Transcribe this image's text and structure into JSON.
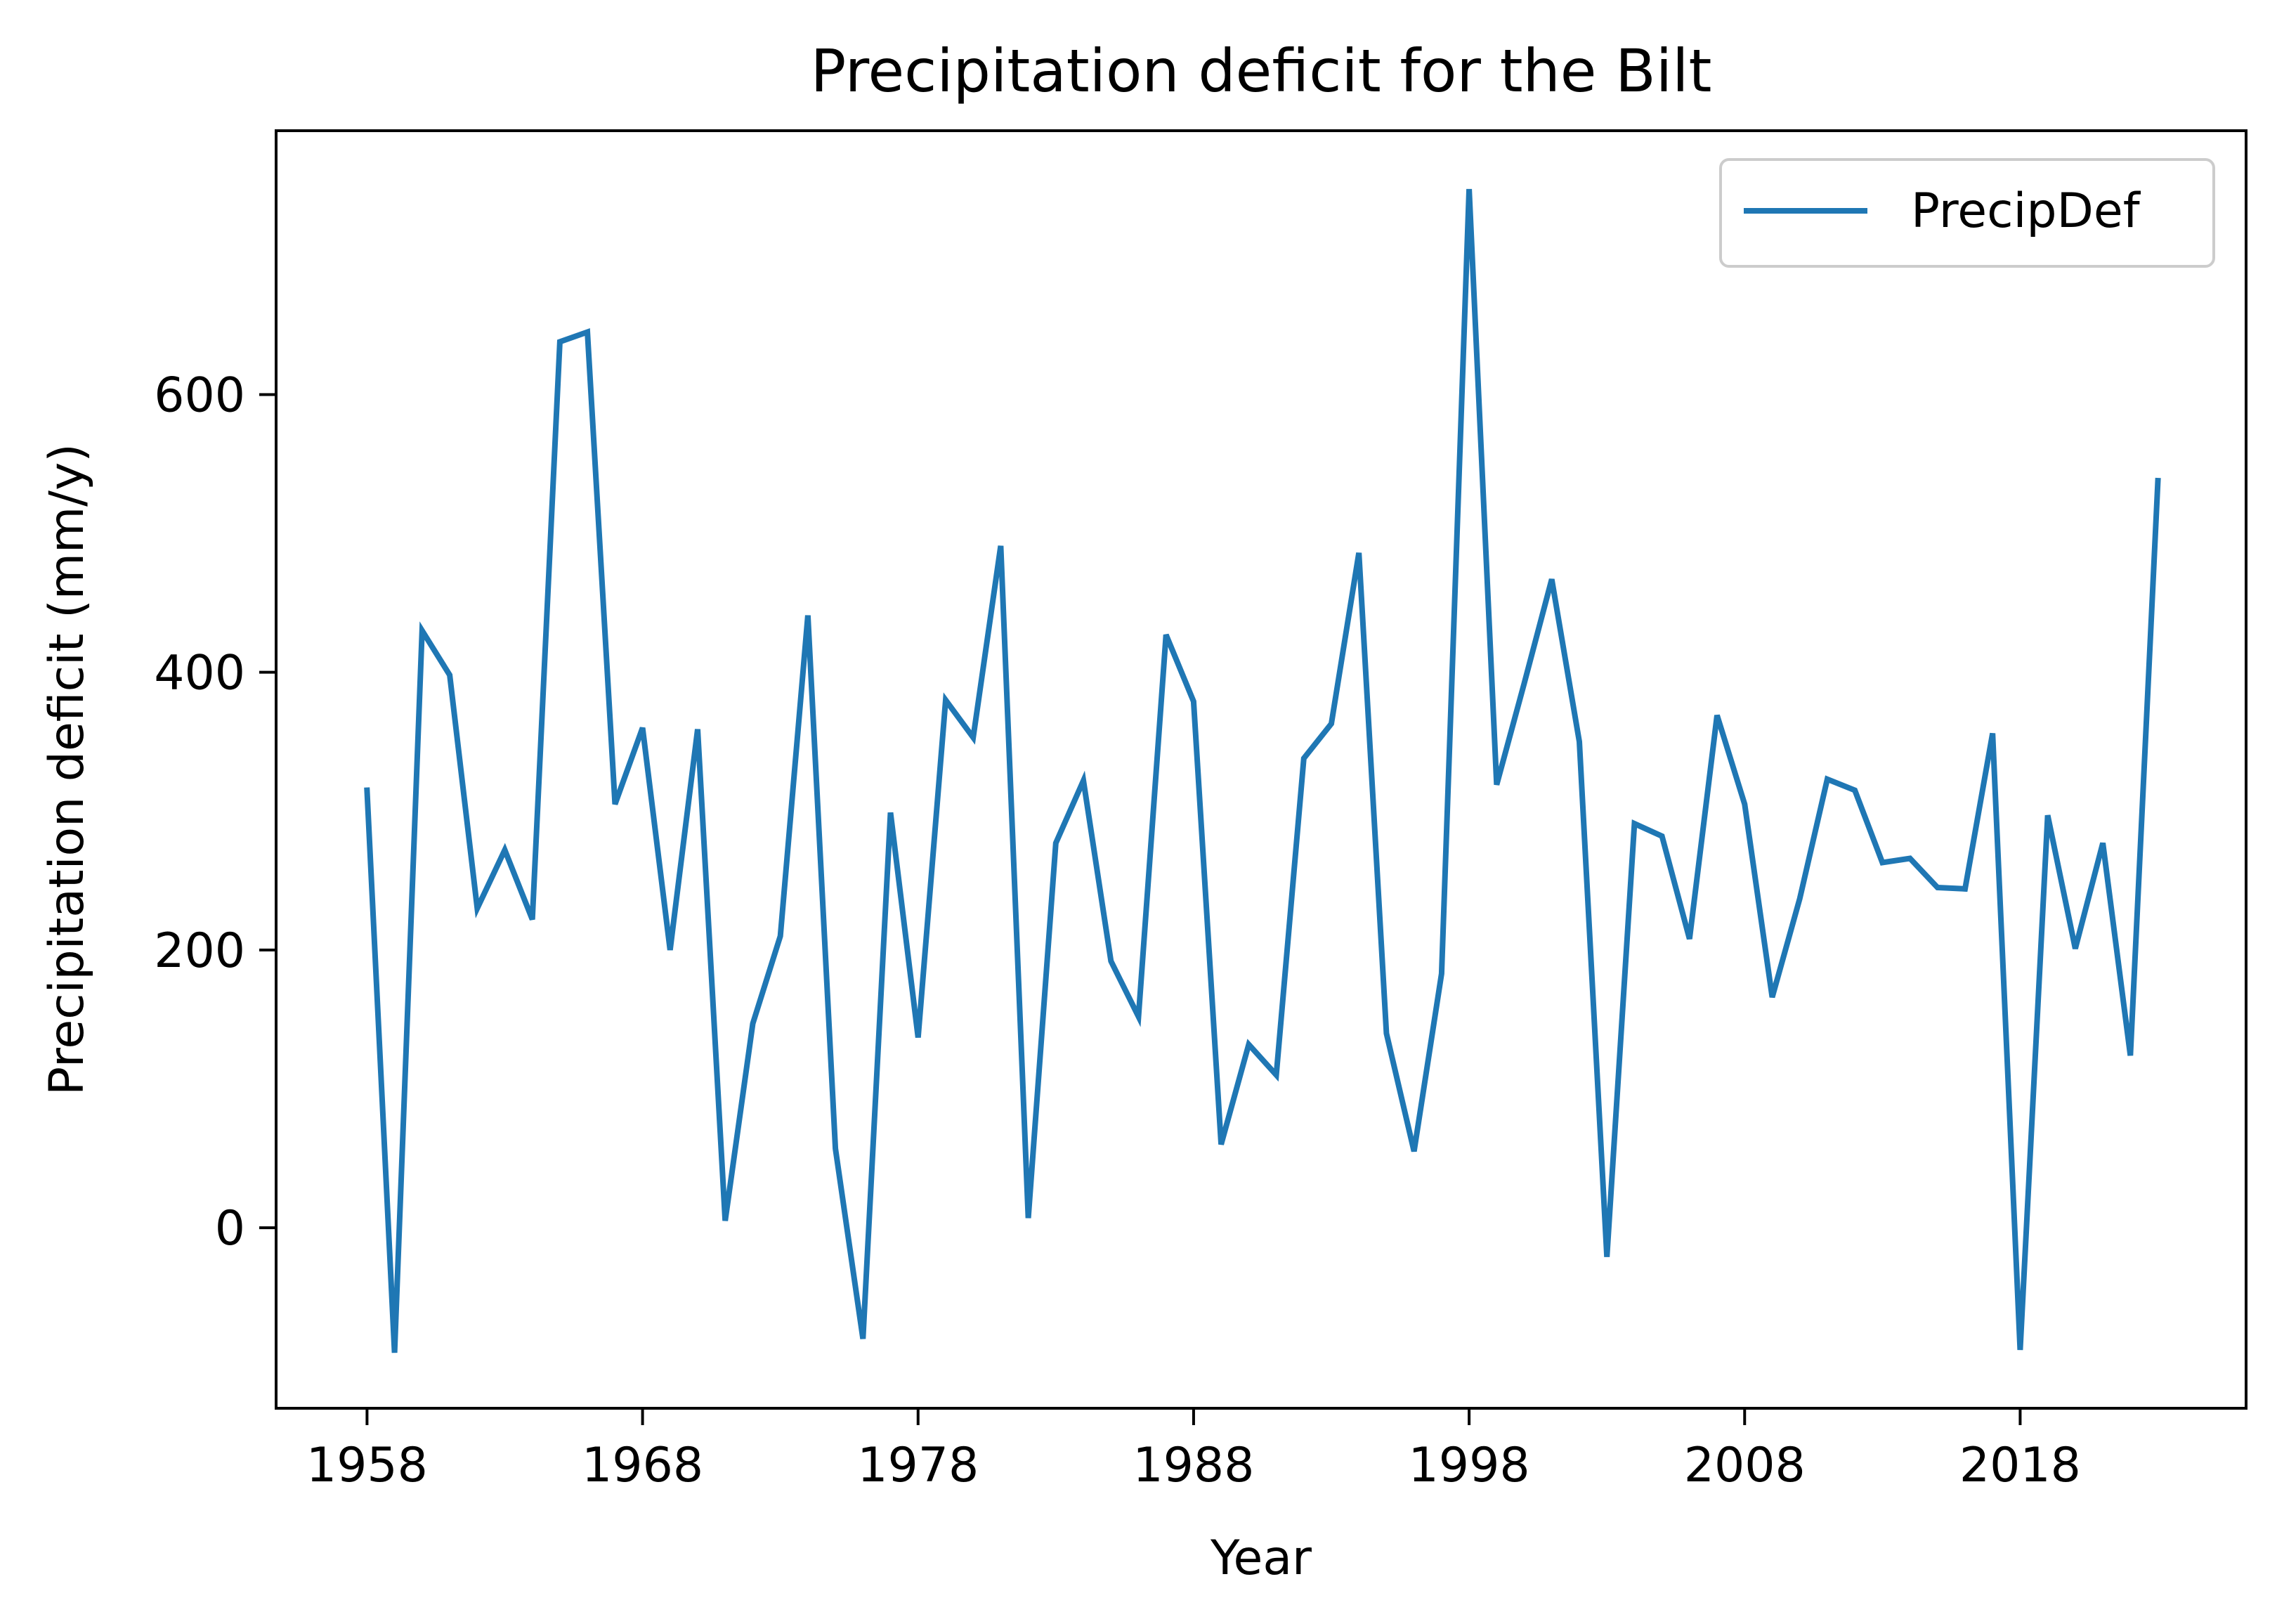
{
  "chart_data": {
    "type": "line",
    "title": "Precipitation deficit for the Bilt",
    "xlabel": "Year",
    "ylabel": "Precipitation deficit (mm/y)",
    "xlim": [
      1954.7,
      2026.2
    ],
    "ylim": [
      -130,
      790
    ],
    "xticks": [
      1958,
      1968,
      1978,
      1988,
      1998,
      2008,
      2018
    ],
    "yticks": [
      0,
      200,
      400,
      600
    ],
    "grid": false,
    "legend_position": "top-right",
    "colors": {
      "series": "#1f77b4",
      "axes": "#000000",
      "legend_frame": "#cccccc"
    },
    "series": [
      {
        "name": "PrecipDef",
        "x": [
          1958,
          1959,
          1960,
          1961,
          1962,
          1963,
          1964,
          1965,
          1966,
          1967,
          1968,
          1969,
          1970,
          1971,
          1972,
          1973,
          1974,
          1975,
          1976,
          1977,
          1978,
          1979,
          1980,
          1981,
          1982,
          1983,
          1984,
          1985,
          1986,
          1987,
          1988,
          1989,
          1990,
          1991,
          1992,
          1993,
          1994,
          1995,
          1996,
          1997,
          1998,
          1999,
          2000,
          2001,
          2002,
          2003,
          2004,
          2005,
          2006,
          2007,
          2008,
          2009,
          2010,
          2011,
          2012,
          2013,
          2014,
          2015,
          2016,
          2017,
          2018,
          2019,
          2020,
          2021,
          2022,
          2023
        ],
        "y": [
          315,
          -90,
          430,
          398,
          230,
          272,
          222,
          638,
          645,
          305,
          360,
          200,
          359,
          5,
          147,
          210,
          441,
          57,
          -80,
          299,
          137,
          380,
          353,
          491,
          7,
          277,
          322,
          192,
          152,
          427,
          379,
          60,
          132,
          110,
          338,
          363,
          486,
          140,
          55,
          183,
          748,
          319,
          392,
          467,
          350,
          -21,
          291,
          282,
          208,
          369,
          305,
          166,
          237,
          323,
          315,
          263,
          266,
          245,
          244,
          356,
          -88,
          297,
          201,
          277,
          124,
          538
        ]
      }
    ]
  }
}
